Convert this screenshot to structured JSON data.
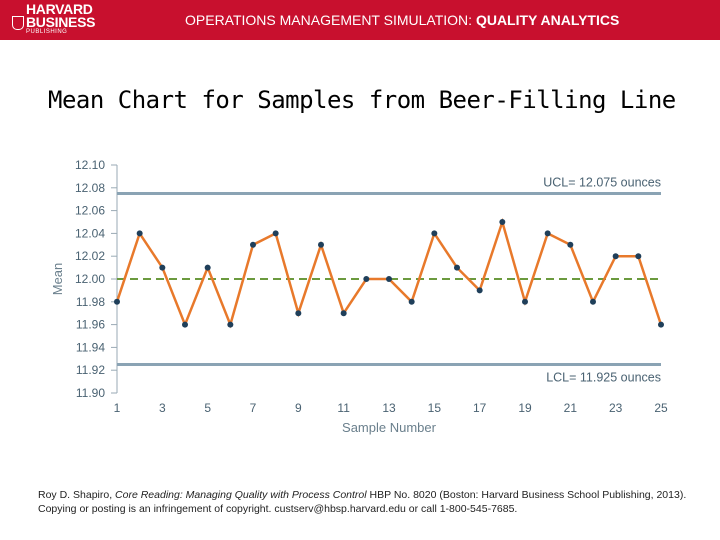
{
  "header": {
    "logo_line1": "HARVARD",
    "logo_line2": "BUSINESS",
    "logo_line3": "PUBLISHING",
    "title_prefix": "OPERATIONS MANAGEMENT SIMULATION:",
    "title_bold": "QUALITY ANALYTICS",
    "color": "#c8102e"
  },
  "slide_title": "Mean Chart for Samples from Beer-Filling Line",
  "chart_data": {
    "type": "line",
    "xlabel": "Sample Number",
    "ylabel": "Mean",
    "xlim": [
      1,
      25
    ],
    "ylim": [
      11.9,
      12.1
    ],
    "x_ticks": [
      "1",
      "3",
      "5",
      "7",
      "9",
      "11",
      "13",
      "15",
      "17",
      "19",
      "21",
      "23",
      "25"
    ],
    "y_ticks": [
      "12.10",
      "12.08",
      "12.06",
      "12.04",
      "12.02",
      "12.00",
      "11.98",
      "11.96",
      "11.94",
      "11.92",
      "11.90"
    ],
    "x": [
      1,
      2,
      3,
      4,
      5,
      6,
      7,
      8,
      9,
      10,
      11,
      12,
      13,
      14,
      15,
      16,
      17,
      18,
      19,
      20,
      21,
      22,
      23,
      24,
      25
    ],
    "values": [
      11.98,
      12.04,
      12.01,
      11.96,
      12.01,
      11.96,
      12.03,
      12.04,
      11.97,
      12.03,
      11.97,
      12.0,
      12.0,
      11.98,
      12.04,
      12.01,
      11.99,
      12.05,
      11.98,
      12.04,
      12.03,
      11.98,
      12.02,
      12.02,
      11.96
    ],
    "center_line": 12.0,
    "ucl": 12.075,
    "lcl": 11.925,
    "ucl_label": "UCL= 12.075 ounces",
    "lcl_label": "LCL= 11.925 ounces",
    "colors": {
      "line": "#e8792b",
      "marker": "#1f3f5a",
      "control": "#8aa3b4",
      "center": "#6b9a3e",
      "text": "#4a6272"
    }
  },
  "citation": {
    "author": "Roy D. Shapiro, ",
    "work": "Core Reading: Managing Quality with Process Control",
    "rest": " HBP No. 8020 (Boston: Harvard Business School Publishing, 2013). Copying or posting is an infringement of copyright. custserv@hbsp.harvard.edu or call 1-800-545-7685."
  }
}
